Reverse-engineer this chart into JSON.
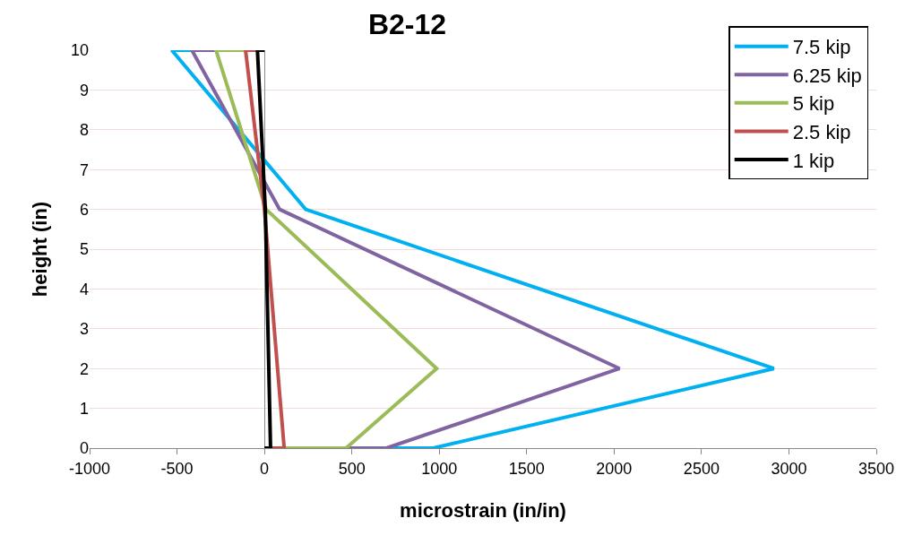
{
  "chart_data": {
    "type": "line",
    "title": "B2-12",
    "xlabel": "microstrain (in/in)",
    "ylabel": "height (in)",
    "xlim": [
      -1000,
      3500
    ],
    "xticks": [
      -1000,
      -500,
      0,
      500,
      1000,
      1500,
      2000,
      2500,
      3000,
      3500
    ],
    "ylim": [
      0,
      10
    ],
    "yticks": [
      0,
      1,
      2,
      3,
      4,
      5,
      6,
      7,
      8,
      9,
      10
    ],
    "grid": "y",
    "legend": "top right",
    "marker": "none",
    "line_style": "solid",
    "series": [
      {
        "name": "7.5 kip",
        "color": "#00b0f0",
        "x": [
          0,
          -530,
          236,
          2914,
          965,
          0
        ],
        "values": [
          10,
          10,
          6,
          2,
          0,
          0
        ]
      },
      {
        "name": "6.25 kip",
        "color": "#8064a2",
        "x": [
          0,
          -415,
          87,
          2031,
          698,
          0
        ],
        "values": [
          10,
          10,
          6,
          2,
          0,
          0
        ]
      },
      {
        "name": "5 kip",
        "color": "#9bbb59",
        "x": [
          0,
          -277,
          10,
          985,
          467,
          0
        ],
        "values": [
          10,
          10,
          6,
          2,
          0,
          0
        ]
      },
      {
        "name": "2.5 kip",
        "color": "#c0504d",
        "x": [
          0,
          -108,
          0,
          75,
          113,
          0
        ],
        "values": [
          10,
          10,
          6,
          2,
          0,
          0
        ]
      },
      {
        "name": "1 kip",
        "color": "#000000",
        "x": [
          0,
          -40,
          5,
          25,
          35,
          0
        ],
        "values": [
          10,
          10,
          6,
          2,
          0,
          0
        ]
      }
    ]
  }
}
